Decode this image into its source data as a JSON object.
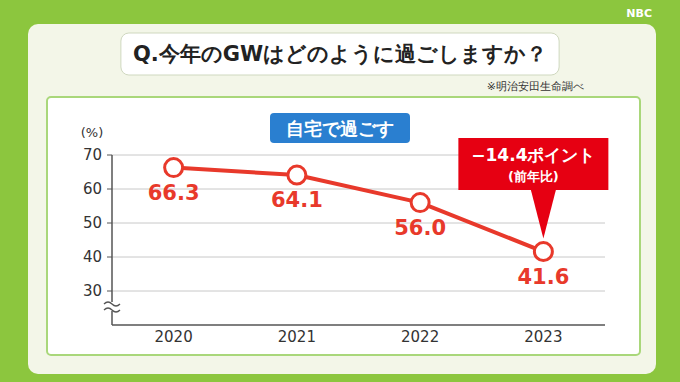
{
  "chart_data": {
    "type": "line",
    "title": "Q.今年のGWはどのように過ごしますか？",
    "source": "※明治安田生命調べ",
    "subtitle": "自宅で過ごす",
    "y_label": "(%)",
    "categories": [
      "2020",
      "2021",
      "2022",
      "2023"
    ],
    "values": [
      66.3,
      64.1,
      56.0,
      41.6
    ],
    "value_labels": [
      "66.3",
      "64.1",
      "56.0",
      "41.6"
    ],
    "color": "#e8392b",
    "marker": "circle",
    "ylim": [
      20,
      70
    ],
    "yticks": [
      30,
      40,
      50,
      60,
      70
    ],
    "grid": true,
    "data_labels": true,
    "annotation": {
      "text": "−14.4ポイント",
      "note": "(前年比)"
    }
  },
  "logo": "NBC"
}
